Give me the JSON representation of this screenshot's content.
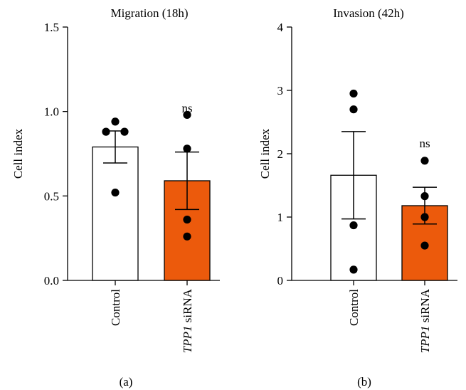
{
  "chart_data": [
    {
      "type": "bar",
      "panel_label": "(a)",
      "title": "Migration (18h)",
      "ylabel": "Cell index",
      "ylim": [
        0,
        1.5
      ],
      "yticks": [
        0.0,
        0.5,
        1.0,
        1.5
      ],
      "ytick_labels": [
        "0.0",
        "0.5",
        "1.0",
        "1.5"
      ],
      "categories": [
        {
          "prefix": "",
          "italic": "",
          "suffix": "Control"
        },
        {
          "prefix": "",
          "italic": "TPP1",
          "suffix": " siRNA"
        }
      ],
      "values": [
        0.79,
        0.59
      ],
      "errors": [
        0.095,
        0.17
      ],
      "points": [
        [
          0.94,
          0.88,
          0.88,
          0.52
        ],
        [
          0.98,
          0.78,
          0.36,
          0.26
        ]
      ],
      "bar_colors": [
        "#ffffff",
        "#ec5a0c"
      ],
      "significance": [
        "",
        "ns"
      ]
    },
    {
      "type": "bar",
      "panel_label": "(b)",
      "title": "Invasion (42h)",
      "ylabel": "Cell index",
      "ylim": [
        0,
        4
      ],
      "yticks": [
        0,
        1,
        2,
        3,
        4
      ],
      "ytick_labels": [
        "0",
        "1",
        "2",
        "3",
        "4"
      ],
      "categories": [
        {
          "prefix": "",
          "italic": "",
          "suffix": "Control"
        },
        {
          "prefix": "",
          "italic": "TPP1",
          "suffix": " siRNA"
        }
      ],
      "values": [
        1.66,
        1.18
      ],
      "errors": [
        0.69,
        0.29
      ],
      "points": [
        [
          2.95,
          2.7,
          0.87,
          0.17
        ],
        [
          1.89,
          1.33,
          1.0,
          0.55
        ]
      ],
      "bar_colors": [
        "#ffffff",
        "#ec5a0c"
      ],
      "significance": [
        "",
        "ns"
      ]
    }
  ]
}
